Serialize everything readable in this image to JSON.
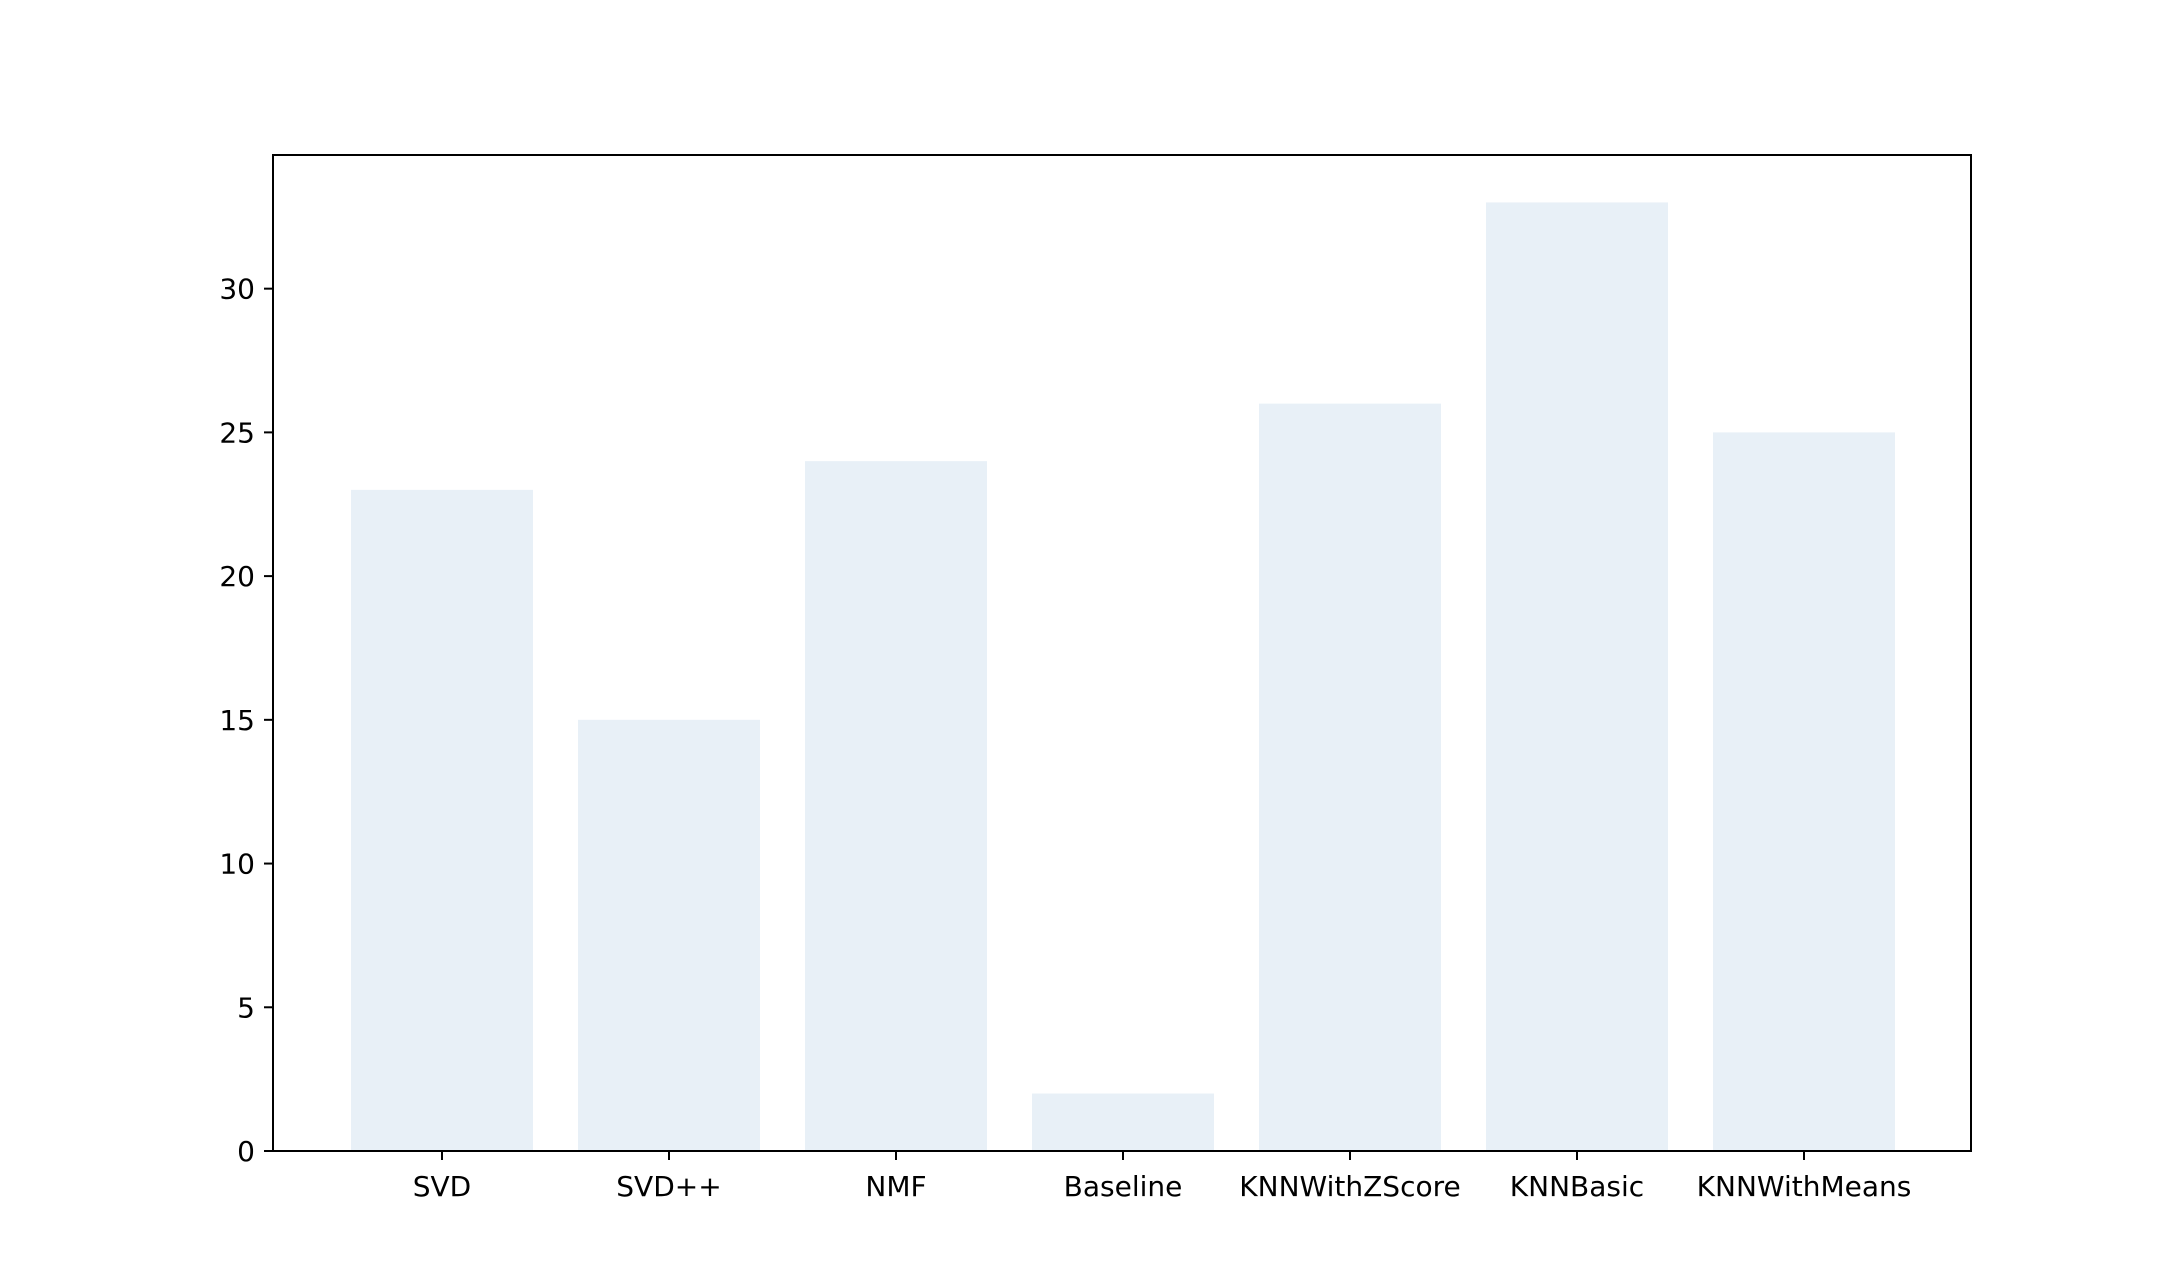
{
  "chart_data": {
    "type": "bar",
    "categories": [
      "SVD",
      "SVD++",
      "NMF",
      "Baseline",
      "KNNWithZScore",
      "KNNBasic",
      "KNNWithMeans"
    ],
    "values": [
      23,
      15,
      24,
      2,
      26,
      33,
      25
    ],
    "title": "",
    "xlabel": "",
    "ylabel": "",
    "ylim": [
      0,
      34.65
    ],
    "yticks": [
      0,
      5,
      10,
      15,
      20,
      25,
      30
    ],
    "bar_color": "#e8f0f7",
    "grid": false,
    "legend": false
  }
}
